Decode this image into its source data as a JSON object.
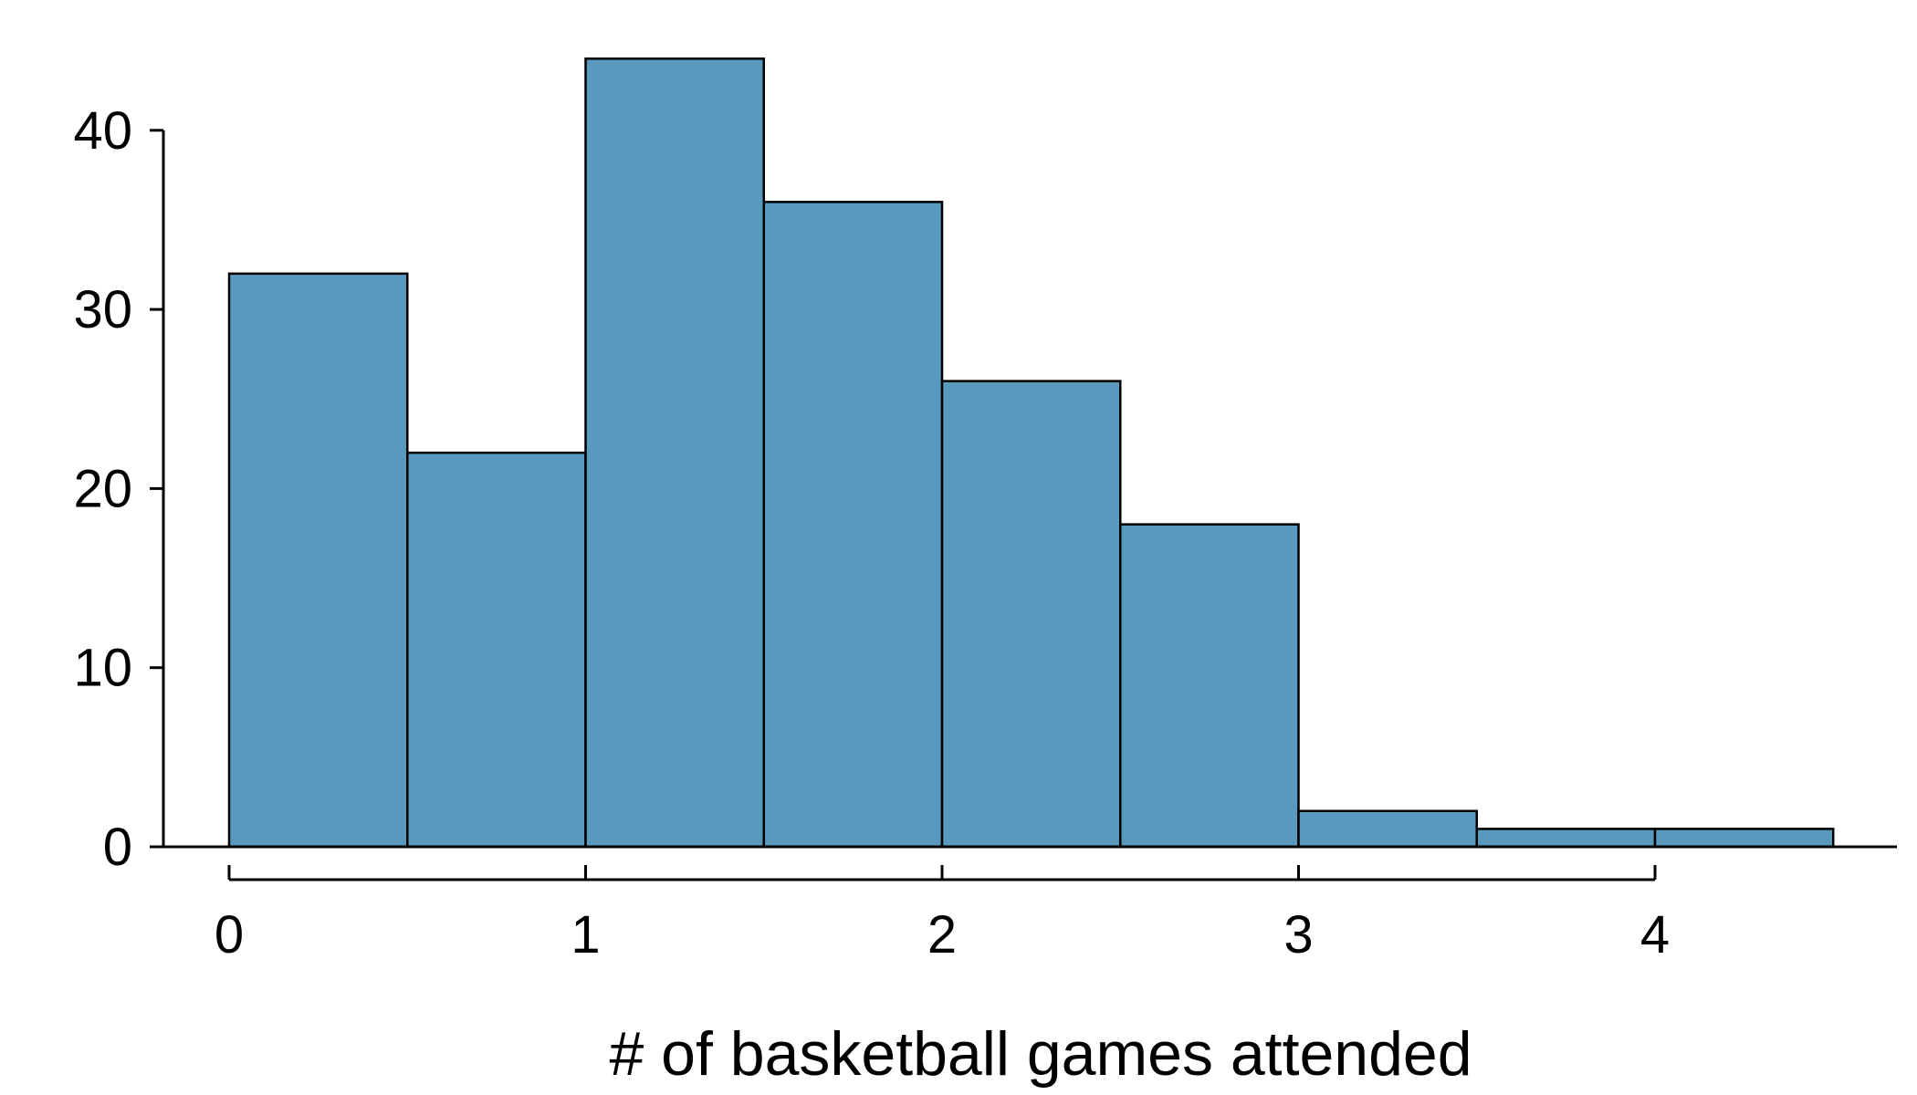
{
  "chart_data": {
    "type": "bar",
    "subtype": "histogram",
    "title": "",
    "xlabel": "# of basketball games attended",
    "ylabel": "",
    "bin_edges": [
      0,
      0.5,
      1,
      1.5,
      2,
      2.5,
      3,
      3.5,
      4,
      4.5
    ],
    "values": [
      32,
      22,
      44,
      36,
      26,
      18,
      2,
      1,
      1
    ],
    "xlim": [
      0,
      4.5
    ],
    "ylim": [
      0,
      44
    ],
    "x_ticks": [
      0,
      1,
      2,
      3,
      4
    ],
    "y_ticks": [
      0,
      10,
      20,
      30,
      40
    ],
    "x_tick_labels": [
      "0",
      "1",
      "2",
      "3",
      "4"
    ],
    "y_tick_labels": [
      "0",
      "10",
      "20",
      "30",
      "40"
    ],
    "grid": false,
    "legend": "none",
    "colors": {
      "bar_fill": "#5899bd",
      "bar_edge": "#000000"
    }
  }
}
